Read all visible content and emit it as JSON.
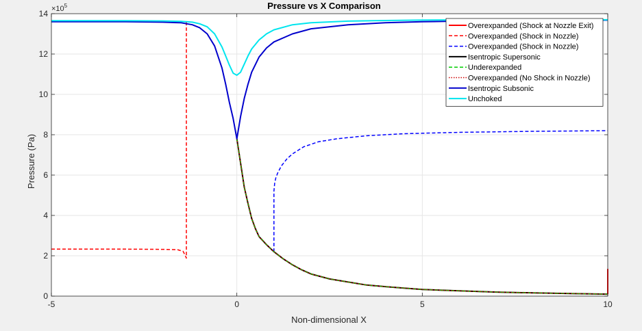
{
  "chart_data": {
    "type": "line",
    "title": "Pressure vs X Comparison",
    "xlabel": "Non-dimensional X",
    "ylabel": "Pressure (Pa)",
    "y_exponent_label": "×10",
    "y_exponent_power": "5",
    "xlim": [
      -5,
      10
    ],
    "ylim": [
      0,
      14
    ],
    "x_ticks": [
      -5,
      0,
      5,
      10
    ],
    "x_tick_labels": [
      "-5",
      "0",
      "5",
      "10"
    ],
    "y_ticks": [
      0,
      2,
      4,
      6,
      8,
      10,
      12,
      14
    ],
    "y_tick_labels": [
      "0",
      "2",
      "4",
      "6",
      "8",
      "10",
      "12",
      "14"
    ],
    "grid": true,
    "legend_position": "top-right",
    "series": [
      {
        "name": "Overexpanded (Shock at Nozzle Exit)",
        "color": "#ff0000",
        "dash": "solid",
        "width": 2,
        "x": [
          10,
          10
        ],
        "y": [
          0.1,
          1.35
        ]
      },
      {
        "name": "Overexpanded (Shock in Nozzle)",
        "color": "#ff0000",
        "dash": "dashed",
        "width": 1.5,
        "x": [
          -5,
          -4,
          -3,
          -2,
          -1.6,
          -1.45,
          -1.4,
          -1.36,
          -1.36
        ],
        "y": [
          2.33,
          2.33,
          2.33,
          2.32,
          2.3,
          2.22,
          2.05,
          1.88,
          13.6
        ]
      },
      {
        "name": "Overexpanded (Shock in Nozzle)",
        "color": "#0000ff",
        "dash": "dashed",
        "width": 1.5,
        "x": [
          1.0,
          1.0,
          1.02,
          1.05,
          1.1,
          1.2,
          1.35,
          1.5,
          1.8,
          2.2,
          2.7,
          3.5,
          4.5,
          6,
          8,
          10
        ],
        "y": [
          2.2,
          5.2,
          5.6,
          5.85,
          6.1,
          6.45,
          6.8,
          7.05,
          7.4,
          7.65,
          7.8,
          7.95,
          8.05,
          8.12,
          8.17,
          8.2
        ]
      },
      {
        "name": "Isentropic Supersonic",
        "color": "#000000",
        "dash": "solid",
        "width": 2,
        "x": [
          0,
          0.05,
          0.1,
          0.2,
          0.3,
          0.4,
          0.5,
          0.6,
          0.8,
          1.0,
          1.25,
          1.5,
          1.75,
          2.0,
          2.5,
          3.0,
          3.5,
          4.0,
          4.5,
          5.0,
          6.0,
          7.0,
          8.0,
          9.0,
          10.0
        ],
        "y": [
          7.8,
          7.2,
          6.6,
          5.4,
          4.6,
          3.85,
          3.35,
          2.95,
          2.55,
          2.2,
          1.85,
          1.55,
          1.3,
          1.1,
          0.85,
          0.7,
          0.55,
          0.47,
          0.4,
          0.33,
          0.26,
          0.2,
          0.16,
          0.13,
          0.1
        ]
      },
      {
        "name": "Underexpanded",
        "color": "#00cc00",
        "dash": "dashed",
        "width": 1.5,
        "x": [
          0,
          0.05,
          0.1,
          0.2,
          0.3,
          0.4,
          0.5,
          0.6,
          0.8,
          1.0,
          1.25,
          1.5,
          1.75,
          2.0,
          2.5,
          3.0,
          3.5,
          4.0,
          4.5,
          5.0,
          6.0,
          7.0,
          8.0,
          9.0,
          10.0
        ],
        "y": [
          7.8,
          7.2,
          6.6,
          5.4,
          4.6,
          3.85,
          3.35,
          2.95,
          2.55,
          2.2,
          1.85,
          1.55,
          1.3,
          1.1,
          0.85,
          0.7,
          0.55,
          0.47,
          0.4,
          0.33,
          0.26,
          0.2,
          0.16,
          0.13,
          0.1
        ]
      },
      {
        "name": "Overexpanded (No Shock in Nozzle)",
        "color": "#cc0000",
        "dash": "dotted",
        "width": 1.5,
        "x": [
          0,
          0.05,
          0.1,
          0.2,
          0.3,
          0.4,
          0.5,
          0.6,
          0.8,
          1.0,
          1.25,
          1.5,
          1.75,
          2.0,
          2.5,
          3.0,
          3.5,
          4.0,
          4.5,
          5.0,
          6.0,
          7.0,
          8.0,
          9.0,
          10.0
        ],
        "y": [
          7.8,
          7.2,
          6.6,
          5.4,
          4.6,
          3.85,
          3.35,
          2.95,
          2.55,
          2.2,
          1.85,
          1.55,
          1.3,
          1.1,
          0.85,
          0.7,
          0.55,
          0.47,
          0.4,
          0.33,
          0.26,
          0.2,
          0.16,
          0.13,
          0.1
        ]
      },
      {
        "name": "Isentropic Subsonic",
        "color": "#0000cc",
        "dash": "solid",
        "width": 2,
        "x": [
          -5,
          -3,
          -2,
          -1.5,
          -1.2,
          -1.0,
          -0.8,
          -0.6,
          -0.4,
          -0.3,
          -0.2,
          -0.1,
          0,
          0.1,
          0.2,
          0.3,
          0.4,
          0.6,
          0.8,
          1.0,
          1.5,
          2.0,
          3.0,
          4.0,
          5.0,
          6.0,
          7.0,
          8.0,
          10.0
        ],
        "y": [
          13.6,
          13.6,
          13.58,
          13.55,
          13.45,
          13.3,
          13.0,
          12.4,
          11.3,
          10.5,
          9.6,
          8.8,
          7.8,
          8.9,
          9.8,
          10.5,
          11.1,
          11.85,
          12.3,
          12.6,
          13.0,
          13.25,
          13.45,
          13.55,
          13.6,
          13.63,
          13.65,
          13.66,
          13.68
        ]
      },
      {
        "name": "Unchoked",
        "color": "#00e5ee",
        "dash": "solid",
        "width": 2,
        "x": [
          -5,
          -3,
          -2,
          -1.5,
          -1.2,
          -1.0,
          -0.8,
          -0.6,
          -0.4,
          -0.3,
          -0.2,
          -0.1,
          0,
          0.1,
          0.2,
          0.3,
          0.4,
          0.6,
          0.8,
          1.0,
          1.5,
          2.0,
          3.0,
          4.0,
          5.0,
          6.0,
          7.0,
          8.0,
          10.0
        ],
        "y": [
          13.65,
          13.65,
          13.64,
          13.62,
          13.58,
          13.5,
          13.35,
          13.0,
          12.35,
          11.9,
          11.45,
          11.05,
          10.95,
          11.1,
          11.5,
          11.9,
          12.25,
          12.7,
          13.0,
          13.2,
          13.45,
          13.55,
          13.63,
          13.66,
          13.68,
          13.69,
          13.7,
          13.7,
          13.7
        ]
      }
    ]
  }
}
